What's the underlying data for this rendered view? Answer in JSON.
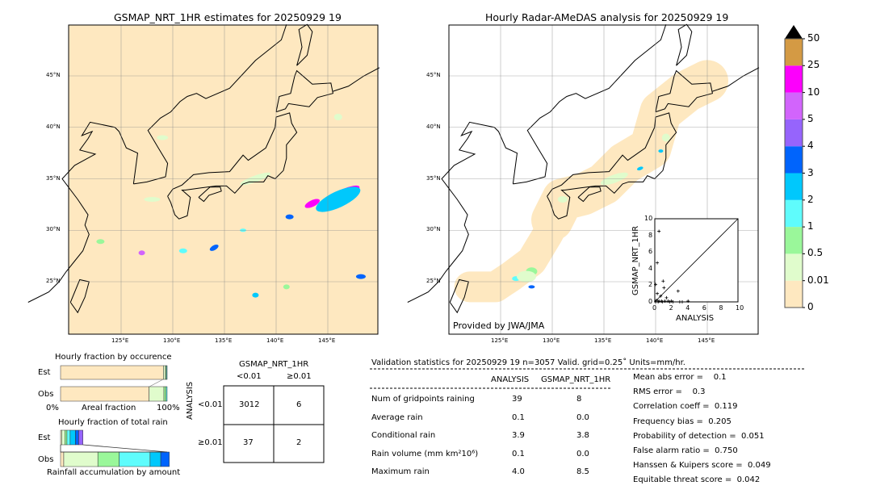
{
  "map_left": {
    "title": "GSMAP_NRT_1HR estimates for 20250929 19",
    "lon_labels": [
      "125°E",
      "130°E",
      "135°E",
      "140°E",
      "145°E"
    ],
    "lat_labels": [
      "45°N",
      "40°N",
      "35°N",
      "30°N",
      "25°N"
    ]
  },
  "map_right": {
    "title": "Hourly Radar-AMeDAS analysis for 20250929 19",
    "lon_labels": [
      "125°E",
      "130°E",
      "135°E",
      "140°E",
      "145°E"
    ],
    "lat_labels": [
      "45°N",
      "40°N",
      "35°N",
      "30°N",
      "25°N"
    ],
    "credit": "Provided by JWA/JMA"
  },
  "colorbar": {
    "labels": [
      "0",
      "0.01",
      "0.5",
      "1",
      "2",
      "3",
      "4",
      "5",
      "10",
      "25",
      "50"
    ],
    "colors": [
      "#fee8c0",
      "#e0fccc",
      "#9af79a",
      "#5ffcfc",
      "#00c8fc",
      "#0064fc",
      "#9664fc",
      "#d264fc",
      "#fc00fc",
      "#d49a44"
    ],
    "extend_color": "#000000"
  },
  "chart_data": [
    {
      "type": "scatter",
      "xlabel": "ANALYSIS",
      "ylabel": "GSMAP_NRT_1HR",
      "xlim": [
        0,
        10
      ],
      "ylim": [
        0,
        10
      ],
      "x_ticks": [
        "0",
        "2",
        "4",
        "6",
        "8",
        "10"
      ],
      "y_ticks": [
        "0",
        "2",
        "4",
        "6",
        "8",
        "10"
      ],
      "points": [
        [
          0.5,
          8.5
        ],
        [
          0.3,
          4.7
        ],
        [
          0.1,
          2.1
        ],
        [
          1.0,
          2.5
        ],
        [
          1.1,
          1.7
        ],
        [
          0.3,
          1.0
        ],
        [
          0.7,
          0.7
        ],
        [
          2.8,
          1.3
        ],
        [
          1.4,
          0.5
        ],
        [
          0.2,
          0.2
        ],
        [
          0.5,
          0.1
        ],
        [
          0.8,
          0.1
        ],
        [
          1.2,
          0.1
        ],
        [
          1.6,
          0.1
        ],
        [
          2.0,
          0.1
        ],
        [
          2.2,
          0.0
        ],
        [
          3.0,
          0.0
        ],
        [
          3.3,
          0.0
        ],
        [
          4.0,
          0.1
        ],
        [
          0.1,
          0.0
        ],
        [
          0.4,
          0.0
        ],
        [
          0.9,
          0.0
        ],
        [
          1.8,
          0.0
        ]
      ]
    },
    {
      "type": "bar",
      "title": "Hourly fraction by occurence",
      "xlabel": "Areal fraction",
      "x_ticks": [
        "0%",
        "100%"
      ],
      "categories": [
        "Est",
        "Obs"
      ],
      "series_fractions": {
        "Est": [
          0.965,
          0.02,
          0.008,
          0.007
        ],
        "Obs": [
          0.83,
          0.14,
          0.02,
          0.01
        ]
      }
    },
    {
      "type": "bar",
      "title": "Hourly fraction of total rain",
      "xlabel": "Rainfall accumulation by amount",
      "categories": [
        "Est",
        "Obs"
      ],
      "series_fractions": {
        "Est": [
          0.01,
          0.03,
          0.02,
          0.03,
          0.05,
          0.03,
          0.04
        ],
        "Obs": [
          0.03,
          0.32,
          0.2,
          0.29,
          0.1,
          0.08
        ]
      }
    }
  ],
  "contingency": {
    "col_title": "GSMAP_NRT_1HR",
    "col_labels": [
      "<0.01",
      "≥0.01"
    ],
    "row_title": "ANALYSIS",
    "row_labels": [
      "<0.01",
      "≥0.01"
    ],
    "cells": [
      [
        "3012",
        "6"
      ],
      [
        "37",
        "2"
      ]
    ]
  },
  "stats": {
    "header": "Validation statistics for 20250929 19  n=3057 Valid. grid=0.25˚ Units=mm/hr.",
    "col_headers": [
      "ANALYSIS",
      "GSMAP_NRT_1HR"
    ],
    "rows": [
      {
        "label": "Num of gridpoints raining",
        "a": "39",
        "g": "8"
      },
      {
        "label": "Average rain",
        "a": "0.1",
        "g": "0.0"
      },
      {
        "label": "Conditional rain",
        "a": "3.9",
        "g": "3.8"
      },
      {
        "label": "Rain volume (mm km²10⁶)",
        "a": "0.1",
        "g": "0.0"
      },
      {
        "label": "Maximum rain",
        "a": "4.0",
        "g": "8.5"
      }
    ],
    "scores": [
      "Mean abs error =    0.1",
      "RMS error =    0.3",
      "Correlation coeff =  0.119",
      "Frequency bias =  0.205",
      "Probability of detection =  0.051",
      "False alarm ratio =  0.750",
      "Hanssen & Kuipers score =  0.049",
      "Equitable threat score =  0.042"
    ]
  }
}
